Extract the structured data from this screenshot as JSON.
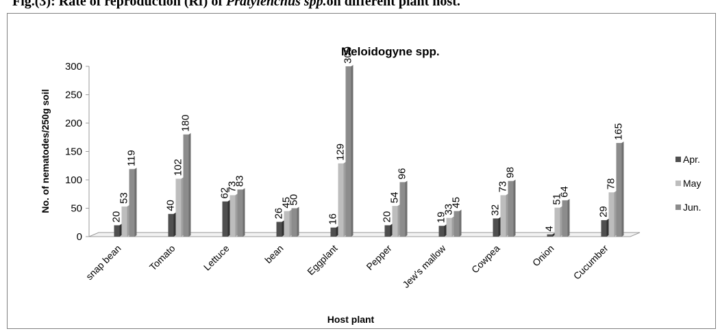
{
  "figure": {
    "caption_prefix": "Fig.(3): Rate of reproduction (Rf) of ",
    "caption_italic": "Pratylenchus spp.",
    "caption_suffix": "on different plant host."
  },
  "chart_data": {
    "type": "bar",
    "title": "Meloidogyne spp.",
    "xlabel": "Host plant",
    "ylabel": "No. of nematodes/250g soil",
    "ylim": [
      0,
      300
    ],
    "yticks": [
      0,
      50,
      100,
      150,
      200,
      250,
      300
    ],
    "grid": false,
    "legend_position": "right",
    "categories": [
      "snap bean",
      "Tomato",
      "Lettuce",
      "bean",
      "Eggplant",
      "Pepper",
      "Jew's mallow",
      "Cowpea",
      "Onion",
      "Cucumber"
    ],
    "series": [
      {
        "name": "Apr.",
        "color": "#4f4f4f",
        "values": [
          20,
          40,
          62,
          26,
          16,
          20,
          19,
          32,
          4,
          29
        ]
      },
      {
        "name": "May",
        "color": "#bdbdbd",
        "values": [
          53,
          102,
          73,
          45,
          129,
          54,
          33,
          73,
          51,
          78
        ]
      },
      {
        "name": "Jun.",
        "color": "#8c8c8c",
        "values": [
          119,
          180,
          83,
          50,
          300,
          96,
          45,
          98,
          64,
          165
        ]
      }
    ]
  }
}
